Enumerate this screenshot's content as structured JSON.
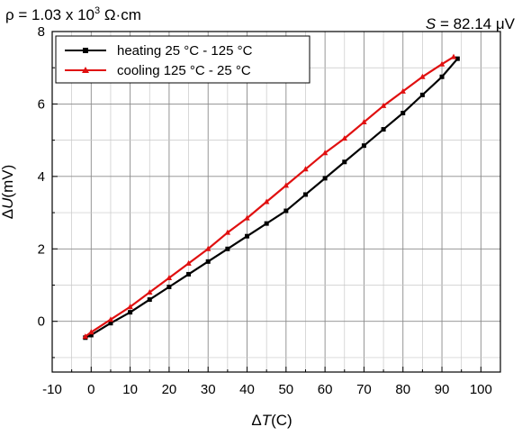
{
  "chart_data": {
    "type": "line",
    "xlabel_prefix": "Δ",
    "xlabel_var": "T",
    "xlabel_unit": "(C)",
    "ylabel_prefix": "Δ",
    "ylabel_var": "U",
    "ylabel_unit": "(mV)",
    "xlim": [
      -10,
      105
    ],
    "ylim": [
      -1.4,
      8
    ],
    "x_ticks": [
      -10,
      0,
      10,
      20,
      30,
      40,
      50,
      60,
      70,
      80,
      90,
      100
    ],
    "y_ticks": [
      0,
      2,
      4,
      6,
      8
    ],
    "grid": true,
    "legend_position": "top-left",
    "annotations": {
      "resistivity": {
        "pre": "ρ = 1.03 x 10",
        "sup": "3",
        "post": " Ω·cm"
      },
      "seebeck": {
        "var": "S",
        "value": " = 82.14 μV"
      }
    },
    "series": [
      {
        "name": "heating 25 °C - 125 °C",
        "color": "#000000",
        "marker": "square",
        "x": [
          -1.5,
          0,
          5,
          10,
          15,
          20,
          25,
          30,
          35,
          40,
          45,
          50,
          55,
          60,
          65,
          70,
          75,
          80,
          85,
          90,
          94
        ],
        "y": [
          -0.45,
          -0.38,
          -0.05,
          0.25,
          0.6,
          0.95,
          1.3,
          1.65,
          2.0,
          2.35,
          2.7,
          3.05,
          3.5,
          3.95,
          4.4,
          4.85,
          5.3,
          5.75,
          6.25,
          6.75,
          7.25
        ]
      },
      {
        "name": "cooling 125 °C - 25 °C",
        "color": "#e01010",
        "marker": "triangle",
        "x": [
          -1.5,
          0,
          5,
          10,
          15,
          20,
          25,
          30,
          35,
          40,
          45,
          50,
          55,
          60,
          65,
          70,
          75,
          80,
          85,
          90,
          93
        ],
        "y": [
          -0.42,
          -0.3,
          0.05,
          0.4,
          0.8,
          1.2,
          1.6,
          2.0,
          2.45,
          2.85,
          3.3,
          3.75,
          4.2,
          4.65,
          5.05,
          5.5,
          5.95,
          6.35,
          6.75,
          7.1,
          7.3
        ]
      }
    ]
  }
}
